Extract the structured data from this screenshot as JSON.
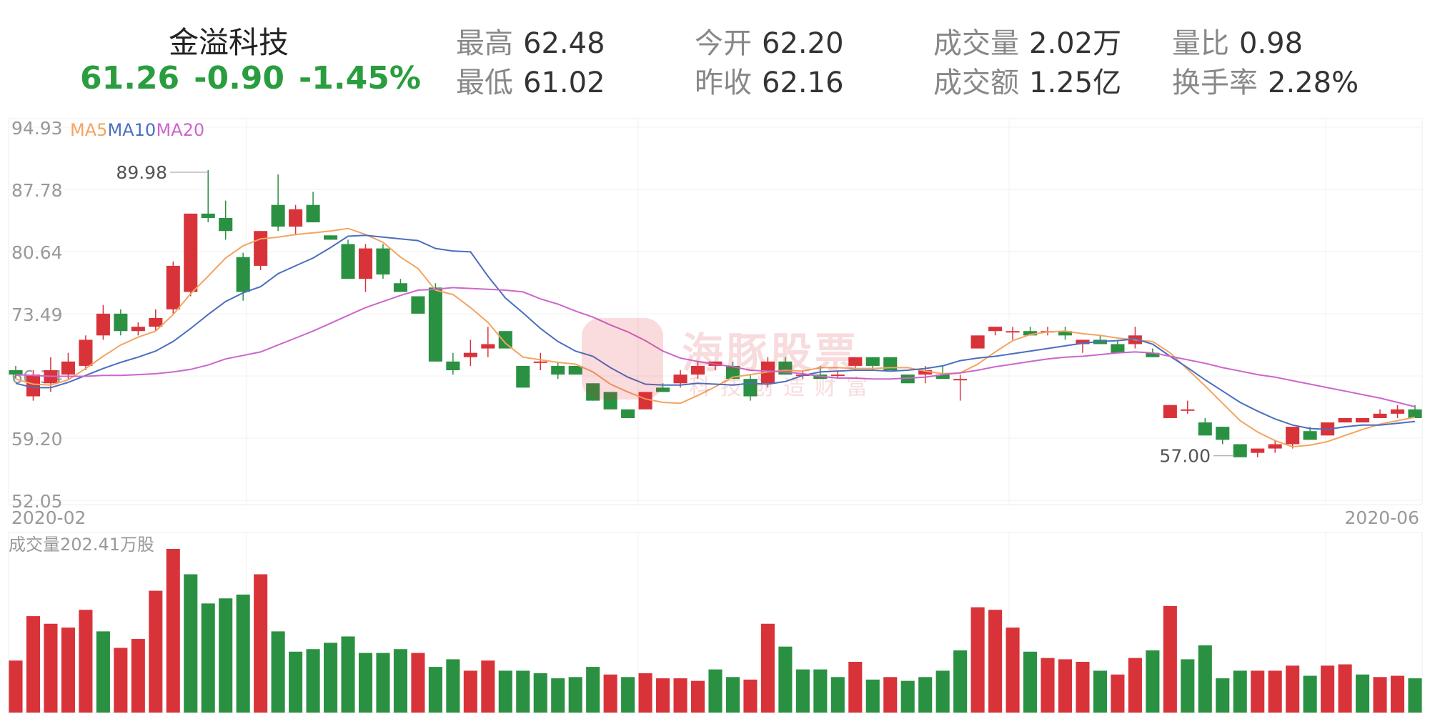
{
  "header": {
    "name": "金溢科技",
    "price": "61.26",
    "change": "-0.90",
    "change_pct": "-1.45%",
    "stats": [
      {
        "label": "最高",
        "value": "62.48"
      },
      {
        "label": "最低",
        "value": "61.02"
      },
      {
        "label": "今开",
        "value": "62.20"
      },
      {
        "label": "昨收",
        "value": "62.16"
      },
      {
        "label": "成交量",
        "value": "2.02万"
      },
      {
        "label": "成交额",
        "value": "1.25亿"
      },
      {
        "label": "量比",
        "value": "0.98"
      },
      {
        "label": "换手率",
        "value": "2.28%"
      }
    ],
    "colors": {
      "up": "#d9333a",
      "down": "#2a9142",
      "quote": "#2a9d3f"
    }
  },
  "watermark": {
    "title": "海豚股票",
    "subtitle": "科技创造财富"
  },
  "chart_data": [
    {
      "type": "candlestick",
      "legend": [
        "MA5",
        "MA10",
        "MA20"
      ],
      "colors": {
        "MA5": "#f4a460",
        "MA10": "#4a6fbf",
        "MA20": "#cc66cc"
      },
      "y_ticks": [
        "94.93",
        "87.78",
        "80.64",
        "73.49",
        "66.34",
        "59.20",
        "52.05"
      ],
      "ylim": [
        52.05,
        94.93
      ],
      "x_labels": [
        "2020-02",
        "2020-06"
      ],
      "max_label": "89.98",
      "min_label": "57.00",
      "candles": [
        [
          67.0,
          67.5,
          66.0,
          66.5
        ],
        [
          64.0,
          67.0,
          63.5,
          66.5
        ],
        [
          65.5,
          68.5,
          64.5,
          67.0
        ],
        [
          66.5,
          69.0,
          66.0,
          68.0
        ],
        [
          67.5,
          71.0,
          67.0,
          70.5
        ],
        [
          71.0,
          74.5,
          70.5,
          73.5
        ],
        [
          73.5,
          74.0,
          71.0,
          71.5
        ],
        [
          71.5,
          72.5,
          71.0,
          72.0
        ],
        [
          72.0,
          74.0,
          71.5,
          73.0
        ],
        [
          74.0,
          79.5,
          73.5,
          79.0
        ],
        [
          76.0,
          85.0,
          75.5,
          85.0
        ],
        [
          85.0,
          90.0,
          84.0,
          84.5
        ],
        [
          84.5,
          86.5,
          82.0,
          83.0
        ],
        [
          80.0,
          80.5,
          75.0,
          76.0
        ],
        [
          79.0,
          83.0,
          78.5,
          83.0
        ],
        [
          86.0,
          89.5,
          83.0,
          83.5
        ],
        [
          83.5,
          86.0,
          82.5,
          85.5
        ],
        [
          86.0,
          87.5,
          84.0,
          84.0
        ],
        [
          82.5,
          82.5,
          82.0,
          82.0
        ],
        [
          81.5,
          82.0,
          77.5,
          77.5
        ],
        [
          77.5,
          81.5,
          76.0,
          81.0
        ],
        [
          81.0,
          81.5,
          77.5,
          78.0
        ],
        [
          77.0,
          77.5,
          76.0,
          76.0
        ],
        [
          75.5,
          75.5,
          73.5,
          73.5
        ],
        [
          76.5,
          77.0,
          68.0,
          68.0
        ],
        [
          68.0,
          69.0,
          66.5,
          67.0
        ],
        [
          68.5,
          70.5,
          67.5,
          69.0
        ],
        [
          69.5,
          72.0,
          68.5,
          70.0
        ],
        [
          71.5,
          71.5,
          69.5,
          69.5
        ],
        [
          67.5,
          67.5,
          65.0,
          65.0
        ],
        [
          68.0,
          69.0,
          67.0,
          68.0
        ],
        [
          67.5,
          68.0,
          66.0,
          66.5
        ],
        [
          67.5,
          67.5,
          66.5,
          66.5
        ],
        [
          65.5,
          65.5,
          63.5,
          63.5
        ],
        [
          64.5,
          64.5,
          62.5,
          62.5
        ],
        [
          62.5,
          62.5,
          61.5,
          61.5
        ],
        [
          62.5,
          64.5,
          62.5,
          64.5
        ],
        [
          65.0,
          65.5,
          64.5,
          64.5
        ],
        [
          65.5,
          67.0,
          65.0,
          66.5
        ],
        [
          66.5,
          68.0,
          66.0,
          67.5
        ],
        [
          67.5,
          68.0,
          67.0,
          68.0
        ],
        [
          67.5,
          68.0,
          66.0,
          66.0
        ],
        [
          66.0,
          66.5,
          63.5,
          64.0
        ],
        [
          65.5,
          68.5,
          65.0,
          68.0
        ],
        [
          68.0,
          68.5,
          66.5,
          66.5
        ],
        [
          66.5,
          67.0,
          66.0,
          66.5
        ],
        [
          66.5,
          67.5,
          66.0,
          66.0
        ],
        [
          66.5,
          67.0,
          66.0,
          66.5
        ],
        [
          67.5,
          68.5,
          67.0,
          68.5
        ],
        [
          68.5,
          68.5,
          67.0,
          67.5
        ],
        [
          68.5,
          68.5,
          67.0,
          67.0
        ],
        [
          66.5,
          66.5,
          65.5,
          65.5
        ],
        [
          66.5,
          67.5,
          65.5,
          67.0
        ],
        [
          66.5,
          67.5,
          66.0,
          66.0
        ],
        [
          66.0,
          66.5,
          63.5,
          66.0
        ],
        [
          69.5,
          71.0,
          69.5,
          71.0
        ],
        [
          71.5,
          72.0,
          71.0,
          72.0
        ],
        [
          71.5,
          72.0,
          70.5,
          71.5
        ],
        [
          71.5,
          72.0,
          71.0,
          71.0
        ],
        [
          71.5,
          72.0,
          71.0,
          71.5
        ],
        [
          71.5,
          72.0,
          70.5,
          71.0
        ],
        [
          70.0,
          70.5,
          69.0,
          70.5
        ],
        [
          70.5,
          71.0,
          70.0,
          70.0
        ],
        [
          70.0,
          70.5,
          69.0,
          69.0
        ],
        [
          70.0,
          72.0,
          69.5,
          71.0
        ],
        [
          69.0,
          69.5,
          68.5,
          68.5
        ],
        [
          61.5,
          63.0,
          61.5,
          63.0
        ],
        [
          62.5,
          63.5,
          62.0,
          62.5
        ],
        [
          61.0,
          61.5,
          59.5,
          59.5
        ],
        [
          60.5,
          60.5,
          58.5,
          59.0
        ],
        [
          58.5,
          58.5,
          57.0,
          57.0
        ],
        [
          57.5,
          58.0,
          57.0,
          58.0
        ],
        [
          58.0,
          59.0,
          57.5,
          58.5
        ],
        [
          58.5,
          60.5,
          58.0,
          60.5
        ],
        [
          60.0,
          60.5,
          59.0,
          59.0
        ],
        [
          59.5,
          61.0,
          59.5,
          61.0
        ],
        [
          61.0,
          61.5,
          61.0,
          61.5
        ],
        [
          61.0,
          61.5,
          61.0,
          61.5
        ],
        [
          61.5,
          62.5,
          61.5,
          62.0
        ],
        [
          62.0,
          63.0,
          61.5,
          62.5
        ],
        [
          62.5,
          63.0,
          61.5,
          61.5
        ]
      ],
      "ma5": [
        66.0,
        65.4,
        65.3,
        65.9,
        67.2,
        68.6,
        69.9,
        70.8,
        71.5,
        73.4,
        75.8,
        77.8,
        79.9,
        81.3,
        82.1,
        82.3,
        82.6,
        82.8,
        83.0,
        83.3,
        82.6,
        81.7,
        80.0,
        78.7,
        76.2,
        75.7,
        74.2,
        72.5,
        70.1,
        68.5,
        68.2,
        67.9,
        67.7,
        66.8,
        65.4,
        64.5,
        63.7,
        63.3,
        63.2,
        64.1,
        65.1,
        66.2,
        66.5,
        66.8,
        67.0,
        66.9,
        67.3,
        67.3,
        67.2,
        67.2,
        67.3,
        67.3,
        66.9,
        66.6,
        66.7,
        67.7,
        69.1,
        70.4,
        71.1,
        71.4,
        71.5,
        71.2,
        71.0,
        70.7,
        70.5,
        70.3,
        69.0,
        67.1,
        65.2,
        63.2,
        61.2,
        59.9,
        58.9,
        58.2,
        58.4,
        58.8,
        59.5,
        60.2,
        60.8,
        61.2,
        61.6
      ],
      "ma10": [
        65.5,
        65.0,
        65.0,
        65.6,
        66.4,
        67.2,
        67.9,
        68.5,
        69.2,
        70.3,
        71.8,
        73.4,
        74.9,
        75.9,
        76.6,
        78.1,
        79.0,
        79.9,
        81.1,
        82.4,
        82.5,
        82.3,
        82.1,
        81.9,
        81.0,
        80.7,
        80.6,
        77.8,
        75.3,
        73.6,
        71.8,
        70.3,
        69.2,
        68.6,
        67.3,
        66.2,
        65.4,
        65.3,
        65.3,
        65.5,
        65.4,
        65.3,
        65.5,
        65.4,
        65.7,
        66.4,
        66.8,
        66.9,
        67.0,
        67.0,
        66.9,
        67.0,
        67.2,
        67.5,
        68.1,
        68.4,
        68.6,
        68.9,
        69.2,
        69.5,
        69.8,
        70.1,
        70.3,
        70.4,
        70.6,
        70.0,
        68.6,
        67.3,
        65.9,
        64.6,
        63.3,
        62.3,
        61.4,
        60.7,
        60.3,
        60.2,
        60.5,
        60.7,
        60.7,
        60.9,
        61.1
      ],
      "ma20": [
        66.5,
        66.4,
        66.3,
        66.3,
        66.3,
        66.4,
        66.4,
        66.5,
        66.6,
        66.8,
        67.1,
        67.6,
        68.3,
        68.7,
        69.1,
        69.9,
        70.7,
        71.5,
        72.4,
        73.3,
        74.2,
        74.9,
        75.6,
        76.2,
        76.3,
        76.5,
        76.4,
        76.3,
        76.2,
        76.0,
        75.2,
        74.6,
        73.8,
        73.1,
        72.2,
        71.4,
        70.4,
        69.2,
        68.4,
        68.0,
        67.7,
        67.4,
        67.0,
        66.9,
        66.8,
        66.6,
        66.3,
        66.1,
        66.1,
        66.0,
        66.0,
        66.1,
        66.2,
        66.5,
        66.7,
        67.0,
        67.4,
        67.7,
        68.0,
        68.3,
        68.5,
        68.6,
        68.8,
        69.0,
        69.1,
        69.0,
        68.6,
        68.2,
        67.8,
        67.3,
        66.9,
        66.5,
        66.2,
        65.8,
        65.4,
        65.0,
        64.6,
        64.2,
        63.8,
        63.3,
        62.8
      ]
    },
    {
      "type": "bar",
      "title": "成交量202.41万股",
      "values": [
        410,
        760,
        700,
        670,
        810,
        640,
        510,
        580,
        960,
        1290,
        1090,
        860,
        900,
        930,
        1090,
        640,
        480,
        500,
        550,
        600,
        470,
        470,
        500,
        470,
        360,
        420,
        330,
        410,
        330,
        330,
        310,
        270,
        280,
        360,
        300,
        280,
        310,
        270,
        270,
        250,
        340,
        280,
        260,
        700,
        520,
        340,
        340,
        280,
        400,
        260,
        280,
        250,
        280,
        330,
        490,
        830,
        810,
        670,
        480,
        430,
        420,
        400,
        330,
        300,
        430,
        490,
        840,
        420,
        530,
        270,
        330,
        330,
        330,
        370,
        290,
        370,
        380,
        300,
        280,
        290,
        270
      ],
      "colors": [
        "r",
        "r",
        "r",
        "r",
        "r",
        "g",
        "r",
        "r",
        "r",
        "r",
        "g",
        "g",
        "g",
        "g",
        "r",
        "g",
        "g",
        "g",
        "g",
        "g",
        "g",
        "g",
        "g",
        "r",
        "g",
        "g",
        "r",
        "r",
        "g",
        "g",
        "g",
        "g",
        "g",
        "g",
        "r",
        "g",
        "r",
        "r",
        "r",
        "r",
        "g",
        "g",
        "r",
        "r",
        "g",
        "g",
        "g",
        "g",
        "r",
        "g",
        "r",
        "g",
        "g",
        "g",
        "g",
        "r",
        "r",
        "r",
        "g",
        "r",
        "r",
        "r",
        "g",
        "r",
        "r",
        "g",
        "r",
        "g",
        "g",
        "g",
        "g",
        "r",
        "r",
        "r",
        "g",
        "r",
        "r",
        "g",
        "r",
        "r",
        "g"
      ]
    }
  ]
}
